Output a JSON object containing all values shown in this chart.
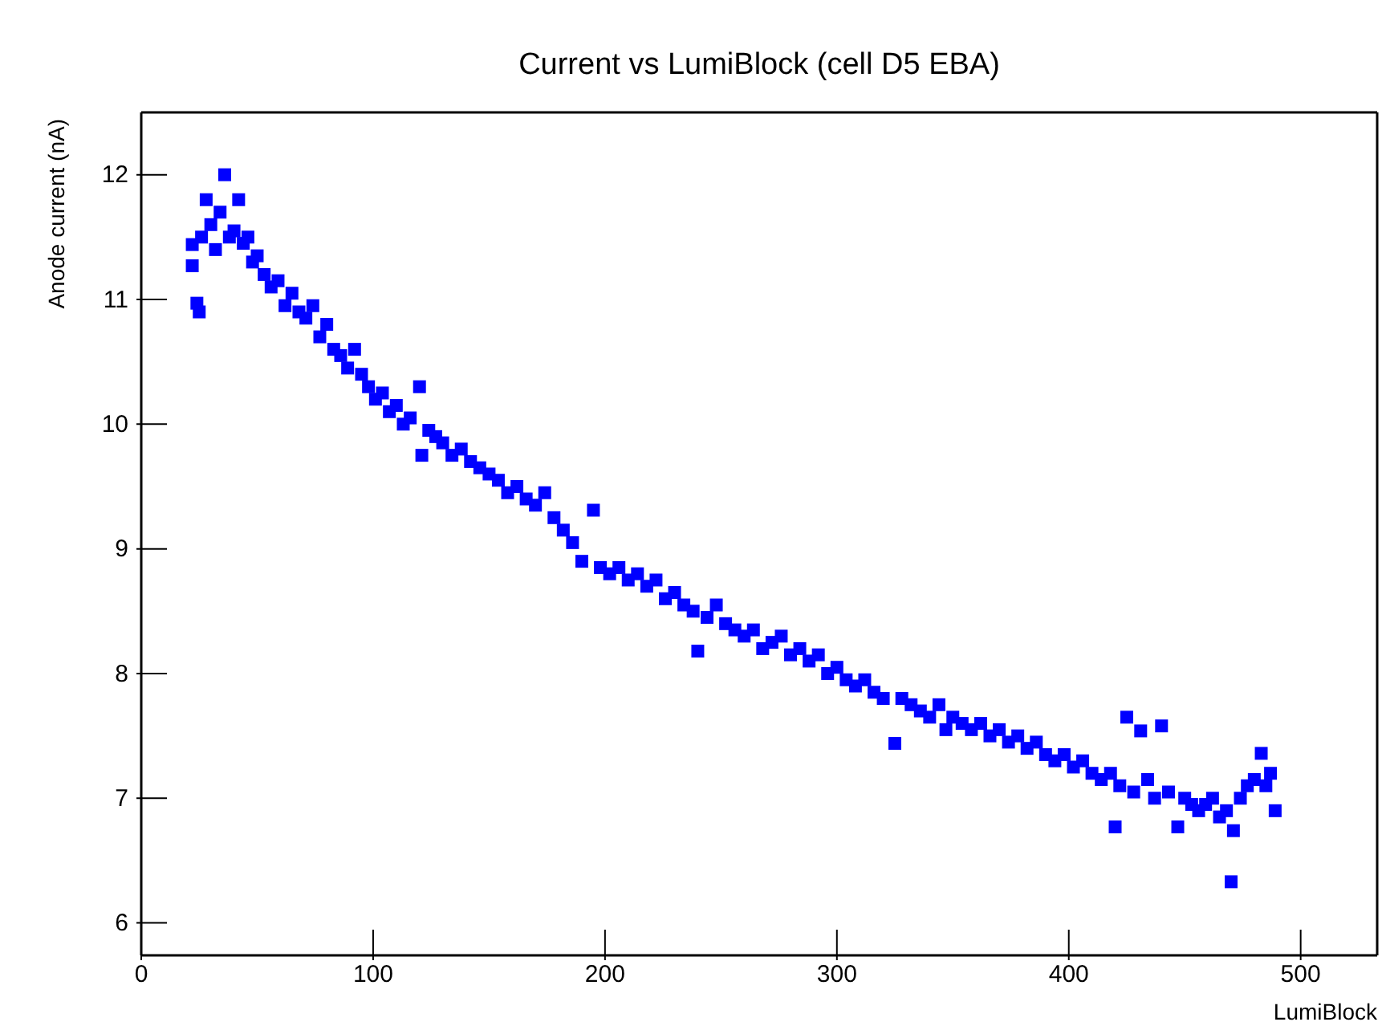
{
  "chart_data": {
    "type": "scatter",
    "title": "Current vs LumiBlock (cell D5 EBA)",
    "xlabel": "LumiBlock",
    "ylabel": "Anode current (nA)",
    "marker": "square",
    "grid": false,
    "xlim": [
      0,
      533
    ],
    "ylim": [
      5.74,
      12.5
    ],
    "xticks": [
      0,
      100,
      200,
      300,
      400,
      500
    ],
    "yticks": [
      6,
      7,
      8,
      9,
      10,
      11,
      12
    ],
    "series": [
      {
        "color": "#0000ff",
        "x": [
          22,
          22,
          24,
          25,
          26,
          28,
          30,
          32,
          34,
          36,
          38,
          40,
          42,
          44,
          46,
          48,
          50,
          53,
          56,
          59,
          62,
          65,
          68,
          71,
          74,
          77,
          80,
          83,
          86,
          89,
          92,
          95,
          98,
          101,
          104,
          107,
          110,
          113,
          116,
          120,
          121,
          124,
          127,
          130,
          134,
          138,
          142,
          146,
          150,
          154,
          158,
          162,
          166,
          170,
          174,
          178,
          182,
          186,
          190,
          195,
          198,
          202,
          206,
          210,
          214,
          218,
          222,
          226,
          230,
          234,
          238,
          240,
          244,
          248,
          252,
          256,
          260,
          264,
          268,
          272,
          276,
          280,
          284,
          288,
          292,
          296,
          300,
          304,
          308,
          312,
          316,
          320,
          325,
          328,
          332,
          336,
          340,
          344,
          347,
          350,
          354,
          358,
          362,
          366,
          370,
          374,
          378,
          382,
          386,
          390,
          394,
          398,
          402,
          406,
          410,
          414,
          418,
          420,
          422,
          425,
          428,
          431,
          434,
          437,
          440,
          443,
          447,
          450,
          453,
          456,
          459,
          462,
          465,
          468,
          470,
          471,
          474,
          477,
          480,
          483,
          485,
          487,
          489
        ],
        "values": [
          11.44,
          11.27,
          10.97,
          10.9,
          11.5,
          11.8,
          11.6,
          11.4,
          11.7,
          12.0,
          11.5,
          11.55,
          11.8,
          11.45,
          11.5,
          11.3,
          11.35,
          11.2,
          11.1,
          11.15,
          10.95,
          11.05,
          10.9,
          10.85,
          10.95,
          10.7,
          10.8,
          10.6,
          10.55,
          10.45,
          10.6,
          10.4,
          10.3,
          10.2,
          10.25,
          10.1,
          10.15,
          10.0,
          10.05,
          10.3,
          9.75,
          9.95,
          9.9,
          9.85,
          9.75,
          9.8,
          9.7,
          9.65,
          9.6,
          9.55,
          9.45,
          9.5,
          9.4,
          9.35,
          9.45,
          9.25,
          9.15,
          9.05,
          8.9,
          9.31,
          8.85,
          8.8,
          8.85,
          8.75,
          8.8,
          8.7,
          8.75,
          8.6,
          8.65,
          8.55,
          8.5,
          8.18,
          8.45,
          8.55,
          8.4,
          8.35,
          8.3,
          8.35,
          8.2,
          8.25,
          8.3,
          8.15,
          8.2,
          8.1,
          8.15,
          8.0,
          8.05,
          7.95,
          7.9,
          7.95,
          7.85,
          7.8,
          7.44,
          7.8,
          7.75,
          7.7,
          7.65,
          7.75,
          7.55,
          7.65,
          7.6,
          7.55,
          7.6,
          7.5,
          7.55,
          7.45,
          7.5,
          7.4,
          7.45,
          7.35,
          7.3,
          7.35,
          7.25,
          7.3,
          7.2,
          7.15,
          7.2,
          6.77,
          7.1,
          7.65,
          7.05,
          7.54,
          7.15,
          7.0,
          7.58,
          7.05,
          6.77,
          7.0,
          6.95,
          6.9,
          6.95,
          7.0,
          6.85,
          6.9,
          6.33,
          6.74,
          7.0,
          7.1,
          7.15,
          7.36,
          7.1,
          7.2,
          6.9
        ]
      }
    ]
  }
}
